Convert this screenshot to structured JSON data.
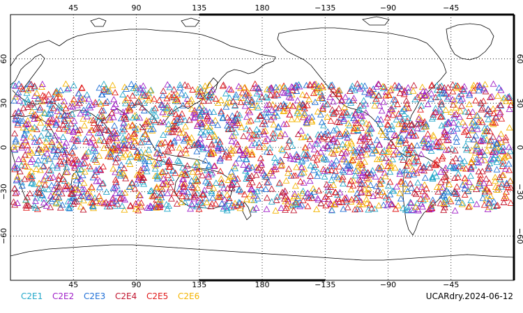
{
  "map": {
    "projection": "equirectangular",
    "lon_range_deg": [
      0,
      360
    ],
    "lat_range_deg": [
      -90,
      90
    ],
    "grid": "dotted",
    "top_lon_ticks": [
      "45",
      "90",
      "135",
      "180",
      "−135",
      "−90",
      "−45"
    ],
    "bottom_lon_ticks": [
      "45",
      "90",
      "135",
      "180",
      "−135",
      "−90",
      "−45"
    ],
    "left_lat_ticks": [
      "60",
      "30",
      "0",
      "−30",
      "−60"
    ],
    "right_lat_ticks": [
      "60",
      "30",
      "0",
      "−30",
      "−60"
    ],
    "marker_shape": "open-triangle",
    "observation_lat_band_deg": [
      -45,
      45
    ]
  },
  "legend": [
    {
      "label": "C2E1",
      "color": "#22a7c9"
    },
    {
      "label": "C2E2",
      "color": "#a020c8"
    },
    {
      "label": "C2E3",
      "color": "#1f6fd6"
    },
    {
      "label": "C2E4",
      "color": "#c0142e"
    },
    {
      "label": "C2E5",
      "color": "#e01a1a"
    },
    {
      "label": "C2E6",
      "color": "#f4b400"
    }
  ],
  "date_label": "UCARdry.2024-06-12"
}
